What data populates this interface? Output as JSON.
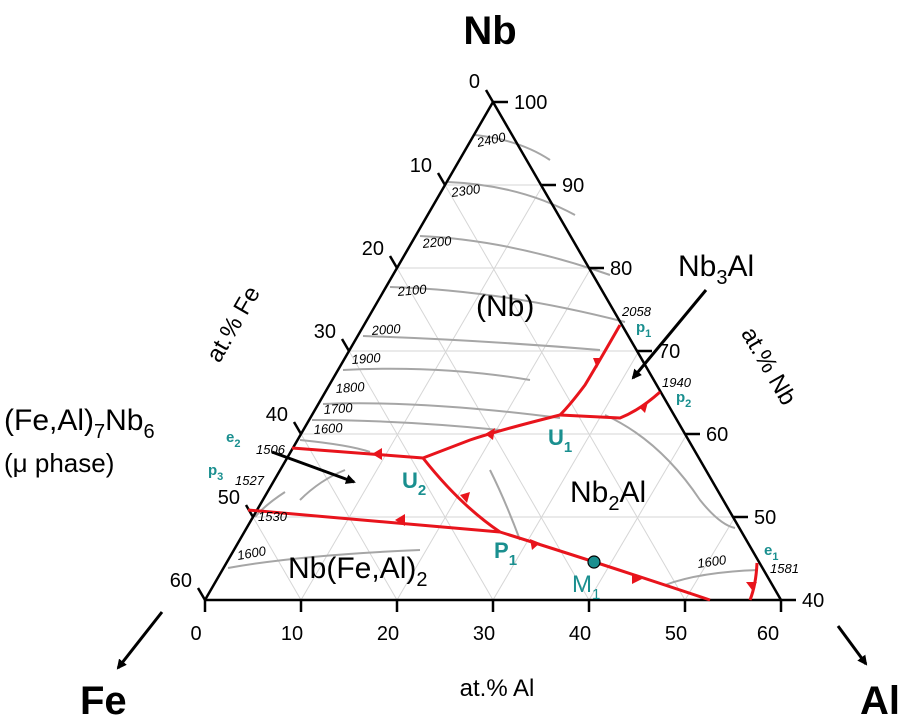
{
  "corners": {
    "top": "Nb",
    "left": "Fe",
    "right": "Al"
  },
  "axes": {
    "fe_title": "at.% Fe",
    "nb_title": "at.% Nb",
    "al_title": "at.% Al",
    "fe_ticks": [
      "0",
      "10",
      "20",
      "30",
      "40",
      "50",
      "60"
    ],
    "nb_ticks": [
      "100",
      "90",
      "80",
      "70",
      "60",
      "50",
      "40"
    ],
    "al_ticks": [
      "0",
      "10",
      "20",
      "30",
      "40",
      "50",
      "60"
    ]
  },
  "phases": {
    "nb": "(Nb)",
    "nb3al_main": "Nb",
    "nb3al_sub": "3",
    "nb3al_end": "Al",
    "nb2al_main": "Nb",
    "nb2al_sub": "2",
    "nb2al_end": "Al",
    "mu_line1_a": "(Fe,Al)",
    "mu_line1_sub": "7",
    "mu_line1_b": "Nb",
    "mu_line1_sub2": "6",
    "mu_line2": "(μ phase)",
    "laves_a": "Nb(Fe,Al)",
    "laves_sub": "2"
  },
  "isotherms": [
    "2400",
    "2300",
    "2200",
    "2100",
    "2000",
    "1900",
    "1800",
    "1700",
    "1600",
    "1600",
    "1600"
  ],
  "points": {
    "p1": {
      "main": "p",
      "sub": "1",
      "temp": "2058"
    },
    "p2": {
      "main": "p",
      "sub": "2",
      "temp": "1940"
    },
    "p3": {
      "main": "p",
      "sub": "3",
      "temp": "1527"
    },
    "e1": {
      "main": "e",
      "sub": "1",
      "temp": "1581"
    },
    "e2": {
      "main": "e",
      "sub": "2",
      "temp": "1506"
    },
    "u1": {
      "main": "U",
      "sub": "1"
    },
    "u2": {
      "main": "U",
      "sub": "2"
    },
    "P1": {
      "main": "P",
      "sub": "1"
    },
    "m1": {
      "main": "M",
      "sub": "1"
    },
    "t1530": "1530"
  },
  "colors": {
    "invariant_lines": "#e8141c",
    "labels": "#1a8f8f",
    "isotherms": "#a6a6a6",
    "grid": "#d6d6d6"
  }
}
